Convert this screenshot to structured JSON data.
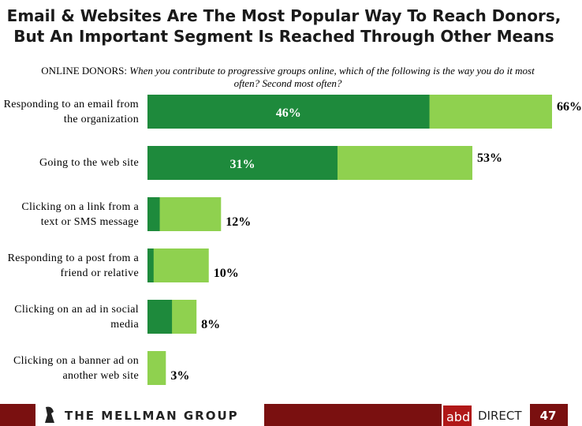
{
  "chart_data": {
    "type": "bar",
    "orientation": "horizontal",
    "overlap": true,
    "title": "Email & Websites Are The Most Popular Way To Reach Donors,",
    "title_line2": "But An Important Segment Is Reached Through Other Means",
    "subtitle_lead": "ONLINE DONORS:",
    "subtitle": "When you contribute to progressive groups online, which of the following is the way you do it most often? Second most often?",
    "categories": [
      "Responding to an email from the organization",
      "Going to the web site",
      "Clicking on a link from a text or SMS message",
      "Responding to a post from a friend or relative",
      "Clicking on an ad in social media",
      "Clicking on a banner ad on another web site"
    ],
    "series": [
      {
        "color": "#8fd14f",
        "values": [
          66,
          53,
          12,
          10,
          8,
          3
        ],
        "value_labels": [
          "66%",
          "53%",
          "12%",
          "10%",
          "8%",
          "3%"
        ]
      },
      {
        "color": "#1e8a3c",
        "values": [
          46,
          31,
          2,
          1,
          4,
          0
        ],
        "value_labels": [
          "46%",
          "31%",
          null,
          null,
          null,
          null
        ]
      }
    ]
  },
  "footer": {
    "logo": "THE MELLMAN GROUP",
    "brand_a": "abd",
    "brand_b": "DIRECT",
    "page": "47"
  }
}
